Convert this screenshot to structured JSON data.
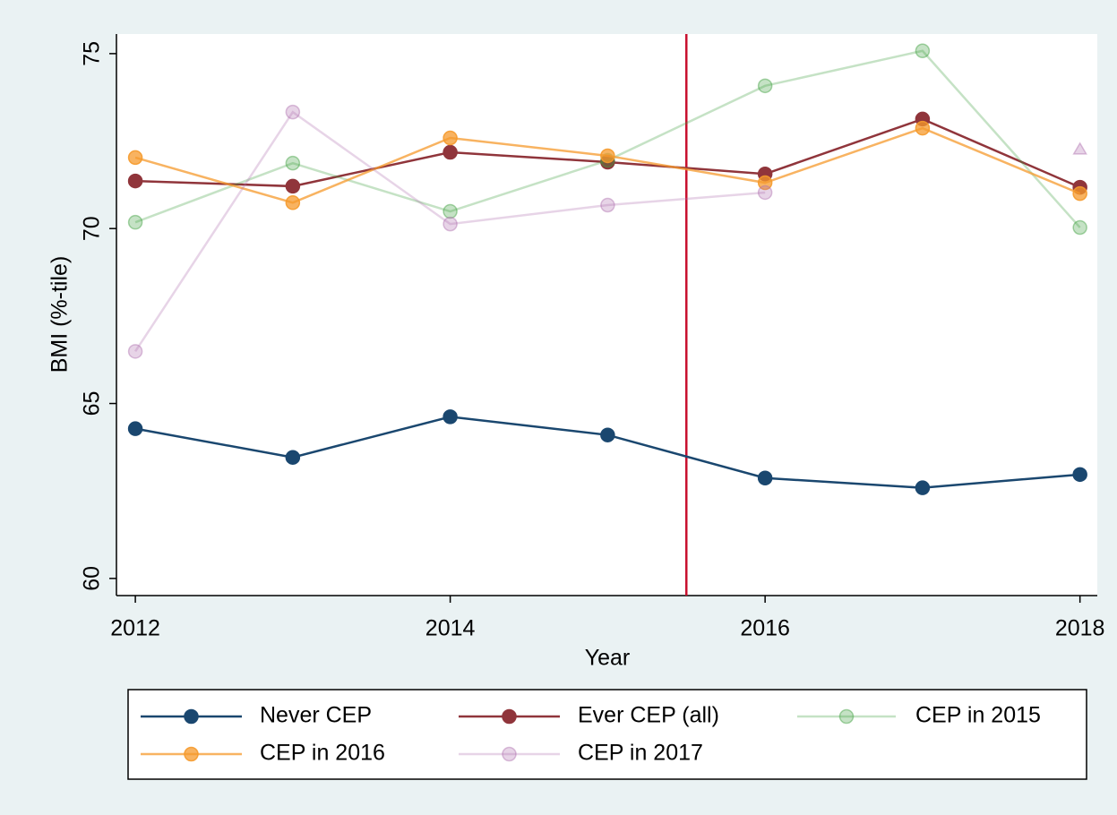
{
  "chart_data": {
    "type": "line",
    "y_label": "BMI (%-tile)",
    "x_label": "Year",
    "x": [
      2012,
      2013,
      2014,
      2015,
      2016,
      2017,
      2018
    ],
    "xlim": [
      2011.88,
      2018.11
    ],
    "xticks": [
      2012,
      2014,
      2016,
      2018
    ],
    "ylim": [
      59.51,
      75.56
    ],
    "yticks": [
      60,
      65,
      70,
      75
    ],
    "grid": false,
    "vline": {
      "x": 2015.5,
      "color": "#c8102e"
    },
    "series": [
      {
        "name": "Never CEP",
        "color": "#1a476f",
        "opacity": 1,
        "values": [
          64.28,
          63.46,
          64.62,
          64.1,
          62.87,
          62.59,
          62.97
        ]
      },
      {
        "name": "Ever CEP (all)",
        "color": "#90353b",
        "opacity": 1,
        "values": [
          71.36,
          71.21,
          72.18,
          71.9,
          71.56,
          73.13,
          71.18
        ]
      },
      {
        "name": "CEP in 2015",
        "color": "#3f9f3f",
        "opacity": 0.3,
        "values": [
          70.18,
          71.87,
          70.49,
          71.95,
          74.08,
          75.08,
          70.03
        ]
      },
      {
        "name": "CEP in 2016",
        "color": "#f59a2c",
        "opacity": 0.75,
        "values": [
          72.03,
          70.74,
          72.59,
          72.08,
          71.31,
          72.87,
          71.0
        ]
      },
      {
        "name": "CEP in 2017",
        "color": "#b070b0",
        "opacity": 0.3,
        "values": [
          66.49,
          73.33,
          70.13,
          70.67,
          71.03,
          null,
          72.26
        ],
        "markers": [
          "circle",
          "circle",
          "circle",
          "circle",
          "circle",
          null,
          "triangle"
        ]
      }
    ]
  }
}
